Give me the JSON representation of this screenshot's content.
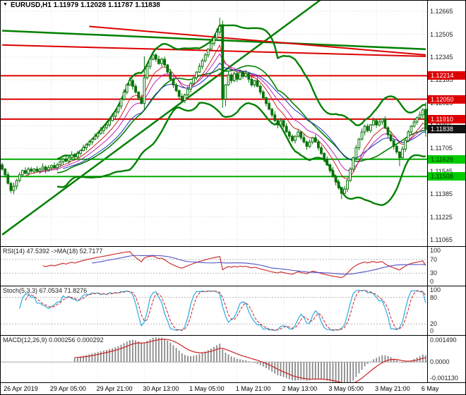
{
  "window": {
    "title": "EURUSD,H1 1.11979 1.12028 1.11787 1.11838"
  },
  "icons": {
    "chart_menu": "▼"
  },
  "colors": {
    "background": "#ffffff",
    "candle": "#067306",
    "grid": "#dcdcdc",
    "resistance": "#dd0000",
    "support": "#00a800",
    "current_badge": "#111111"
  },
  "chart_data": {
    "type": "candlestick",
    "symbol": "EURUSD",
    "timeframe": "H1",
    "current": {
      "open": 1.11979,
      "high": 1.12028,
      "low": 1.11787,
      "close": 1.11838
    },
    "price_axis": {
      "min": 1.1102,
      "max": 1.1274,
      "labels": [
        "1.12665",
        "1.12505",
        "1.12345",
        "1.12185",
        "1.12025",
        "1.11865",
        "1.11705",
        "1.11545",
        "1.11385",
        "1.11225",
        "1.11065"
      ]
    },
    "levels": [
      {
        "price": 1.12214,
        "label": "1.12214",
        "kind": "resistance",
        "line": true,
        "line_color": "#dd0000",
        "bg": "#dd0000",
        "fg": "#ffffff"
      },
      {
        "price": 1.1205,
        "label": "1.12050",
        "kind": "resistance",
        "line": true,
        "line_color": "#dd0000",
        "bg": "#dd0000",
        "fg": "#ffffff"
      },
      {
        "price": 1.1191,
        "label": "1.11910",
        "kind": "resistance",
        "line": true,
        "line_color": "#dd0000",
        "bg": "#dd0000",
        "fg": "#ffffff"
      },
      {
        "price": 1.11838,
        "label": "1.11838",
        "kind": "current-price",
        "line": false,
        "line_color": "#111111",
        "bg": "#111111",
        "fg": "#ffffff"
      },
      {
        "price": 1.11629,
        "label": "1.11629",
        "kind": "support",
        "line": true,
        "line_color": "#00a800",
        "bg": "#00cc00",
        "fg": "#003300"
      },
      {
        "price": 1.11508,
        "label": "1.11508",
        "kind": "support",
        "line": true,
        "line_color": "#00a800",
        "bg": "#00cc00",
        "fg": "#003300"
      }
    ],
    "trendlines": [
      {
        "b1": 0,
        "p1": 1.111,
        "b2": 110,
        "p2": 1.1275,
        "color": "#008000",
        "width": 2.5
      },
      {
        "b1": 0,
        "p1": 1.1253,
        "b2": 146,
        "p2": 1.124,
        "color": "#008000",
        "width": 2.5
      },
      {
        "b1": 0,
        "p1": 1.1243,
        "b2": 146,
        "p2": 1.1235,
        "color": "#dd0000",
        "width": 2
      },
      {
        "b1": 30,
        "p1": 1.1256,
        "b2": 146,
        "p2": 1.1236,
        "color": "#dd0000",
        "width": 2
      }
    ],
    "time_axis": {
      "labels": [
        "26 Apr 2019",
        "29 Apr 05:00",
        "29 Apr 21:00",
        "30 Apr 13:00",
        "1 May 05:00",
        "1 May 21:00",
        "2 May 13:00",
        "3 May 05:00",
        "3 May 21:00",
        "6 May"
      ],
      "bars": [
        1,
        17,
        33,
        49,
        65,
        81,
        97,
        113,
        129,
        145
      ]
    },
    "indicators": {
      "bollinger": {
        "period": 20,
        "deviation": 2,
        "color": "#008000"
      },
      "emas": [
        {
          "period": 8,
          "color": "#cc2222"
        },
        {
          "period": 13,
          "color": "#bb22bb"
        },
        {
          "period": 21,
          "color": "#2233bb"
        }
      ],
      "rsi": {
        "label": "RSI(14) 47.5392 ->MA(18) 52.7177",
        "period": 14,
        "ma_period": 18,
        "value": 47.5392,
        "ma_value": 52.7177,
        "color": "#cc2222",
        "ma_color": "#5050c8",
        "levels": [
          70,
          30
        ],
        "axis": [
          {
            "v": 100,
            "t": "100"
          },
          {
            "v": 70,
            "t": "70"
          },
          {
            "v": 30,
            "t": "30"
          },
          {
            "v": 0,
            "t": "0"
          }
        ]
      },
      "stoch": {
        "label": "Stoch(5,3,3) 67.0534 71.8276",
        "k_value": 67.0534,
        "d_value": 71.8276,
        "k_color": "#29abe2",
        "d_color": "#cc2222",
        "levels": [
          80,
          20
        ],
        "axis": [
          {
            "v": 100,
            "t": "100"
          },
          {
            "v": 80,
            "t": "80"
          },
          {
            "v": 20,
            "t": "20"
          },
          {
            "v": 0,
            "t": "0"
          }
        ]
      },
      "macd": {
        "label": "MACD(12,26,9) 0.000256 0.000292",
        "macd_value": 0.000256,
        "signal_value": 0.000292,
        "hist_color": "#8a8a8a",
        "signal_color": "#cc2222",
        "max": 0.00149,
        "min": -0.00113,
        "axis_top": "0.001490",
        "axis_zero": "0.0000",
        "axis_bottom": "-0.001130"
      }
    },
    "candles": [
      [
        1.1159,
        1.11605,
        1.11548,
        1.1156
      ],
      [
        1.1156,
        1.11568,
        1.115,
        1.1152
      ],
      [
        1.1152,
        1.1154,
        1.11452,
        1.1146
      ],
      [
        1.1146,
        1.1147,
        1.11392,
        1.1141
      ],
      [
        1.1141,
        1.11465,
        1.11385,
        1.1144
      ],
      [
        1.1144,
        1.11492,
        1.11416,
        1.1148
      ],
      [
        1.1148,
        1.11538,
        1.11466,
        1.1152
      ],
      [
        1.1152,
        1.11556,
        1.11504,
        1.1155
      ],
      [
        1.1155,
        1.11572,
        1.11524,
        1.1153
      ],
      [
        1.1153,
        1.11574,
        1.1151,
        1.1156
      ],
      [
        1.1156,
        1.11575,
        1.11533,
        1.11545
      ],
      [
        1.11545,
        1.11568,
        1.11525,
        1.1156
      ],
      [
        1.1156,
        1.1158,
        1.11537,
        1.11545
      ],
      [
        1.11545,
        1.1157,
        1.11527,
        1.1156
      ],
      [
        1.1156,
        1.116,
        1.1155,
        1.11575
      ],
      [
        1.11575,
        1.11587,
        1.11531,
        1.11555
      ],
      [
        1.11555,
        1.11588,
        1.11541,
        1.1157
      ],
      [
        1.1157,
        1.11591,
        1.11554,
        1.11585
      ],
      [
        1.11585,
        1.11607,
        1.11564,
        1.1157
      ],
      [
        1.1157,
        1.11604,
        1.1155,
        1.1159
      ],
      [
        1.1159,
        1.11625,
        1.11578,
        1.1161
      ],
      [
        1.1161,
        1.11638,
        1.1159,
        1.1163
      ],
      [
        1.1163,
        1.1165,
        1.11607,
        1.11615
      ],
      [
        1.11615,
        1.1165,
        1.11597,
        1.1164
      ],
      [
        1.1164,
        1.11685,
        1.1163,
        1.1166
      ],
      [
        1.1166,
        1.11672,
        1.11621,
        1.11645
      ],
      [
        1.11645,
        1.11688,
        1.11631,
        1.1167
      ],
      [
        1.1167,
        1.11696,
        1.11654,
        1.1169
      ],
      [
        1.1169,
        1.11732,
        1.11684,
        1.1171
      ],
      [
        1.1171,
        1.11744,
        1.1169,
        1.1173
      ],
      [
        1.1173,
        1.11765,
        1.11718,
        1.1175
      ],
      [
        1.1175,
        1.11778,
        1.1173,
        1.1177
      ],
      [
        1.1177,
        1.1181,
        1.11762,
        1.1179
      ],
      [
        1.1179,
        1.1182,
        1.11772,
        1.1181
      ],
      [
        1.1181,
        1.11855,
        1.118,
        1.1183
      ],
      [
        1.1183,
        1.11862,
        1.11806,
        1.1185
      ],
      [
        1.1185,
        1.11888,
        1.11836,
        1.1187
      ],
      [
        1.1187,
        1.11906,
        1.11854,
        1.119
      ],
      [
        1.119,
        1.11952,
        1.11894,
        1.1193
      ],
      [
        1.1193,
        1.11974,
        1.1191,
        1.1196
      ],
      [
        1.1196,
        1.12015,
        1.11948,
        1.12
      ],
      [
        1.12,
        1.12058,
        1.1198,
        1.1205
      ],
      [
        1.1205,
        1.1212,
        1.12042,
        1.121
      ],
      [
        1.121,
        1.1216,
        1.12082,
        1.1215
      ],
      [
        1.1215,
        1.12205,
        1.1214,
        1.1218
      ],
      [
        1.1218,
        1.12192,
        1.12116,
        1.1214
      ],
      [
        1.1214,
        1.12158,
        1.12086,
        1.121
      ],
      [
        1.121,
        1.12106,
        1.12044,
        1.1206
      ],
      [
        1.1206,
        1.12082,
        1.12014,
        1.1202
      ],
      [
        1.1202,
        1.1235,
        1.1197,
        1.122
      ],
      [
        1.122,
        1.12295,
        1.12188,
        1.1228
      ],
      [
        1.1228,
        1.12338,
        1.1226,
        1.1233
      ],
      [
        1.1233,
        1.1238,
        1.12322,
        1.1236
      ],
      [
        1.1236,
        1.1237,
        1.12312,
        1.1233
      ],
      [
        1.1233,
        1.12355,
        1.1229,
        1.123
      ],
      [
        1.123,
        1.12342,
        1.12276,
        1.1233
      ],
      [
        1.1233,
        1.12348,
        1.12276,
        1.1229
      ],
      [
        1.1229,
        1.12296,
        1.12224,
        1.1224
      ],
      [
        1.1224,
        1.12262,
        1.12184,
        1.1219
      ],
      [
        1.1219,
        1.12204,
        1.1213,
        1.1215
      ],
      [
        1.1215,
        1.12165,
        1.12098,
        1.1211
      ],
      [
        1.1211,
        1.12118,
        1.1205,
        1.1207
      ],
      [
        1.1207,
        1.1209,
        1.12032,
        1.1204
      ],
      [
        1.1204,
        1.1209,
        1.12022,
        1.1208
      ],
      [
        1.1208,
        1.12145,
        1.1207,
        1.1212
      ],
      [
        1.1212,
        1.12172,
        1.12096,
        1.1216
      ],
      [
        1.1216,
        1.12218,
        1.12146,
        1.122
      ],
      [
        1.122,
        1.12246,
        1.12184,
        1.1224
      ],
      [
        1.1224,
        1.12302,
        1.12234,
        1.1228
      ],
      [
        1.1228,
        1.12334,
        1.1226,
        1.1232
      ],
      [
        1.1232,
        1.12375,
        1.12308,
        1.1236
      ],
      [
        1.1236,
        1.12408,
        1.1234,
        1.124
      ],
      [
        1.124,
        1.1246,
        1.12392,
        1.1244
      ],
      [
        1.1244,
        1.1249,
        1.12422,
        1.1248
      ],
      [
        1.1248,
        1.12545,
        1.1247,
        1.1252
      ],
      [
        1.1252,
        1.1262,
        1.12496,
        1.1256
      ],
      [
        1.1256,
        1.126,
        1.1199,
        1.1205
      ],
      [
        1.1205,
        1.12156,
        1.12,
        1.1215
      ],
      [
        1.1215,
        1.12242,
        1.12144,
        1.1222
      ],
      [
        1.1222,
        1.12234,
        1.1216,
        1.1218
      ],
      [
        1.1218,
        1.12245,
        1.12168,
        1.1223
      ],
      [
        1.1223,
        1.12238,
        1.1217,
        1.1219
      ],
      [
        1.1219,
        1.1226,
        1.12182,
        1.1224
      ],
      [
        1.1224,
        1.1225,
        1.12192,
        1.1221
      ],
      [
        1.1221,
        1.12255,
        1.122,
        1.1223
      ],
      [
        1.1223,
        1.12242,
        1.12166,
        1.1219
      ],
      [
        1.1219,
        1.12208,
        1.12136,
        1.1215
      ],
      [
        1.1215,
        1.12186,
        1.12134,
        1.1218
      ],
      [
        1.1218,
        1.12202,
        1.12134,
        1.1214
      ],
      [
        1.1214,
        1.12154,
        1.1208,
        1.121
      ],
      [
        1.121,
        1.12115,
        1.12048,
        1.1206
      ],
      [
        1.1206,
        1.12068,
        1.12,
        1.1202
      ],
      [
        1.1202,
        1.1204,
        1.11972,
        1.1198
      ],
      [
        1.1198,
        1.1199,
        1.11922,
        1.1194
      ],
      [
        1.1194,
        1.11965,
        1.1189,
        1.119
      ],
      [
        1.119,
        1.11912,
        1.11846,
        1.1187
      ],
      [
        1.1187,
        1.11918,
        1.11856,
        1.119
      ],
      [
        1.119,
        1.11906,
        1.11844,
        1.1186
      ],
      [
        1.1186,
        1.11882,
        1.11814,
        1.1182
      ],
      [
        1.1182,
        1.11834,
        1.1177,
        1.1179
      ],
      [
        1.1179,
        1.11805,
        1.11748,
        1.1176
      ],
      [
        1.1176,
        1.11798,
        1.1174,
        1.1179
      ],
      [
        1.1179,
        1.1184,
        1.11782,
        1.1182
      ],
      [
        1.1182,
        1.1183,
        1.11762,
        1.1178
      ],
      [
        1.1178,
        1.11805,
        1.1174,
        1.1175
      ],
      [
        1.1175,
        1.11762,
        1.11696,
        1.1172
      ],
      [
        1.1172,
        1.11768,
        1.11706,
        1.1175
      ],
      [
        1.1175,
        1.11786,
        1.11734,
        1.1178
      ],
      [
        1.1178,
        1.11802,
        1.11744,
        1.1175
      ],
      [
        1.1175,
        1.11764,
        1.1169,
        1.1171
      ],
      [
        1.1171,
        1.11725,
        1.11658,
        1.1167
      ],
      [
        1.1167,
        1.11678,
        1.1161,
        1.1163
      ],
      [
        1.1163,
        1.1165,
        1.11582,
        1.1159
      ],
      [
        1.1159,
        1.116,
        1.11532,
        1.1155
      ],
      [
        1.1155,
        1.11575,
        1.115,
        1.1151
      ],
      [
        1.1151,
        1.11522,
        1.11446,
        1.1147
      ],
      [
        1.1147,
        1.11488,
        1.11416,
        1.1143
      ],
      [
        1.1143,
        1.11436,
        1.1135,
        1.1139
      ],
      [
        1.1139,
        1.11442,
        1.11384,
        1.1142
      ],
      [
        1.1142,
        1.11494,
        1.114,
        1.1148
      ],
      [
        1.1148,
        1.11575,
        1.11468,
        1.1156
      ],
      [
        1.1156,
        1.11648,
        1.1154,
        1.1164
      ],
      [
        1.1164,
        1.1173,
        1.11632,
        1.1171
      ],
      [
        1.1171,
        1.1178,
        1.11692,
        1.1177
      ],
      [
        1.1177,
        1.11845,
        1.1176,
        1.1182
      ],
      [
        1.1182,
        1.11872,
        1.11796,
        1.1186
      ],
      [
        1.1186,
        1.11878,
        1.11816,
        1.1183
      ],
      [
        1.1183,
        1.11876,
        1.11814,
        1.1187
      ],
      [
        1.1187,
        1.11922,
        1.11864,
        1.119
      ],
      [
        1.119,
        1.11914,
        1.1185,
        1.1187
      ],
      [
        1.1187,
        1.11905,
        1.11858,
        1.1189
      ],
      [
        1.1189,
        1.11918,
        1.1187,
        1.1191
      ],
      [
        1.1191,
        1.1193,
        1.11842,
        1.1185
      ],
      [
        1.1185,
        1.1186,
        1.11782,
        1.118
      ],
      [
        1.118,
        1.11825,
        1.1175,
        1.1176
      ],
      [
        1.1176,
        1.11772,
        1.11696,
        1.1172
      ],
      [
        1.1172,
        1.11738,
        1.11666,
        1.1168
      ],
      [
        1.1168,
        1.11686,
        1.1158,
        1.1164
      ],
      [
        1.1164,
        1.11722,
        1.11634,
        1.117
      ],
      [
        1.117,
        1.11774,
        1.1168,
        1.1176
      ],
      [
        1.1176,
        1.11835,
        1.11748,
        1.1182
      ],
      [
        1.1182,
        1.11868,
        1.118,
        1.1186
      ],
      [
        1.1186,
        1.1191,
        1.11852,
        1.1189
      ],
      [
        1.1189,
        1.1193,
        1.11872,
        1.1192
      ],
      [
        1.1192,
        1.11965,
        1.1191,
        1.1194
      ],
      [
        1.1194,
        1.11987,
        1.11916,
        1.11975
      ],
      [
        1.11979,
        1.12028,
        1.11787,
        1.11838
      ]
    ]
  }
}
